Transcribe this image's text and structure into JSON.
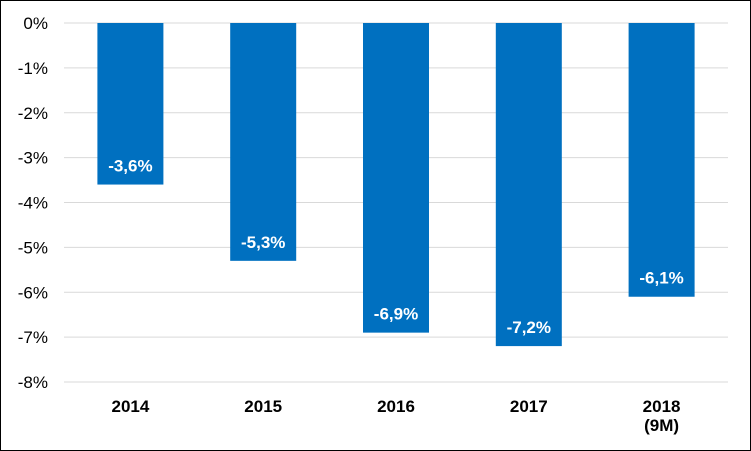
{
  "chart_data": {
    "type": "bar",
    "title": "",
    "xlabel": "",
    "ylabel": "",
    "categories": [
      "2014",
      "2015",
      "2016",
      "2017",
      "2018\n(9M)"
    ],
    "values": [
      -3.6,
      -5.3,
      -6.9,
      -7.2,
      -6.1
    ],
    "data_labels": [
      "-3,6%",
      "-5,3%",
      "-6,9%",
      "-7,2%",
      "-6,1%"
    ],
    "y_ticks": [
      0,
      -1,
      -2,
      -3,
      -4,
      -5,
      -6,
      -7,
      -8
    ],
    "y_tick_labels": [
      "0%",
      "-1%",
      "-2%",
      "-3%",
      "-4%",
      "-5%",
      "-6%",
      "-7%",
      "-8%"
    ],
    "ylim": [
      -8,
      0
    ],
    "grid": true,
    "legend": "none",
    "bar_color": "#0070C0",
    "grid_color": "#D9D9D9"
  }
}
